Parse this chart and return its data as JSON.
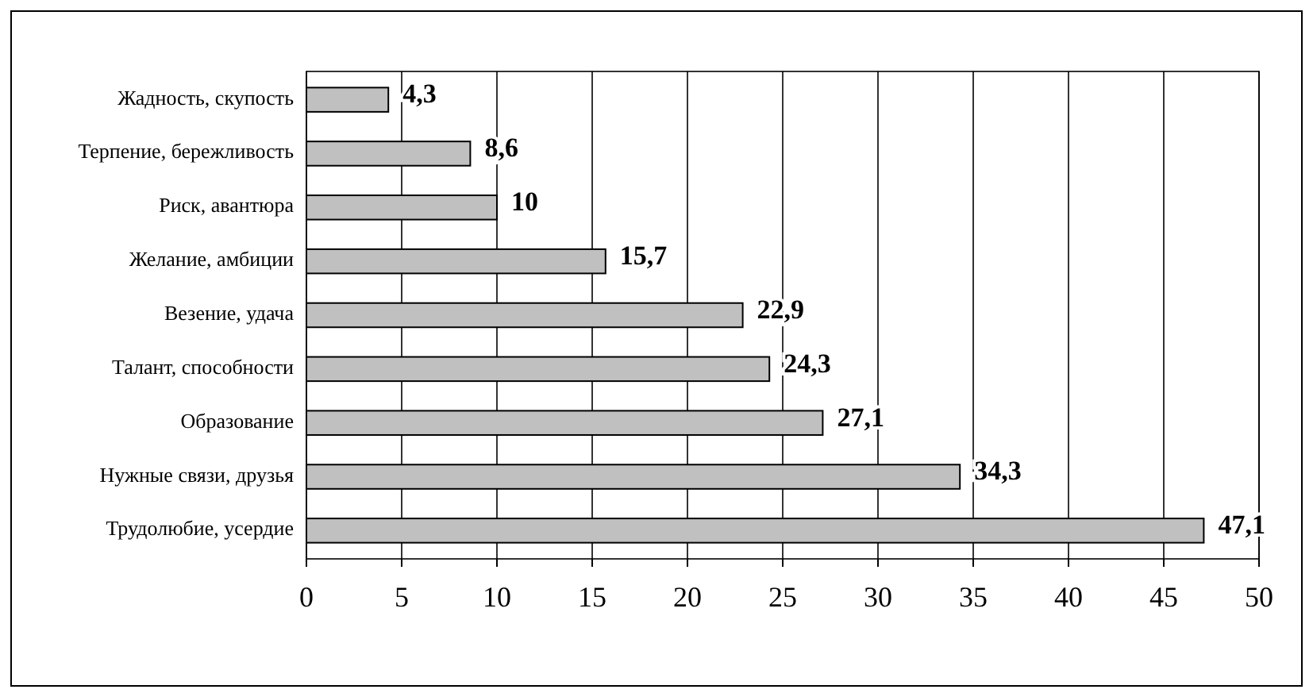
{
  "chart_data": {
    "type": "bar",
    "orientation": "horizontal",
    "categories": [
      "Жадность, скупость",
      "Терпение, бережливость",
      "Риск, авантюра",
      "Желание, амбиции",
      "Везение, удача",
      "Талант, способности",
      "Образование",
      "Нужные связи, друзья",
      "Трудолюбие, усердие"
    ],
    "values": [
      4.3,
      8.6,
      10,
      15.7,
      22.9,
      24.3,
      27.1,
      34.3,
      47.1
    ],
    "value_labels": [
      "4,3",
      "8,6",
      "10",
      "15,7",
      "22,9",
      "24,3",
      "27,1",
      "34,3",
      "47,1"
    ],
    "color": "#c0c0c0",
    "xlim": [
      0,
      50
    ],
    "xticks": [
      0,
      5,
      10,
      15,
      20,
      25,
      30,
      35,
      40,
      45,
      50
    ],
    "grid": "x"
  }
}
